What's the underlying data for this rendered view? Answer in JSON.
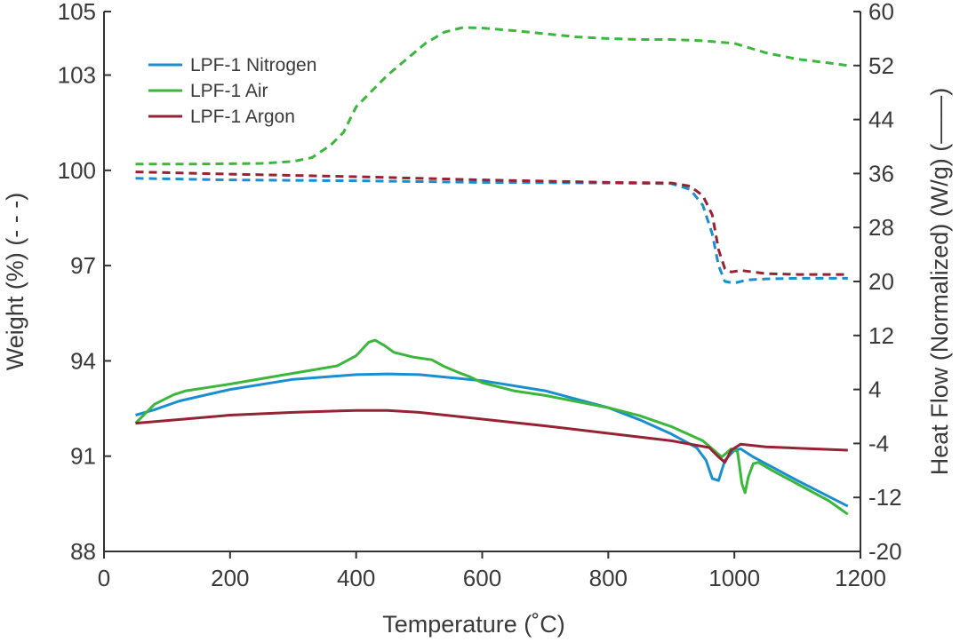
{
  "chart_data": {
    "type": "line",
    "title": "",
    "xlabel": "Temperature (˚C)",
    "ylabel_left": "Weight (%) (- - -)",
    "ylabel_right": "Heat Flow (Normalized) (W/g) (——)",
    "xlim": [
      0,
      1200
    ],
    "ylim_left": [
      88,
      105
    ],
    "ylim_right": [
      -20,
      60
    ],
    "x_ticks": [
      "0",
      "200",
      "400",
      "600",
      "800",
      "1000",
      "1200"
    ],
    "y_left_ticks": [
      "88",
      "91",
      "94",
      "97",
      "100",
      "103",
      "105"
    ],
    "y_right_ticks": [
      "-20",
      "-12",
      "-4",
      "4",
      "12",
      "20",
      "28",
      "36",
      "44",
      "52",
      "60"
    ],
    "legend_position": "top-left",
    "colors": {
      "nitrogen": "#1a8fd0",
      "air": "#3cb63c",
      "argon": "#962234"
    },
    "series": [
      {
        "name": "LPF-1 Nitrogen",
        "color": "#1a8fd0",
        "style": "dashed",
        "axis": "left",
        "legend": true,
        "points": [
          [
            50,
            99.75
          ],
          [
            200,
            99.7
          ],
          [
            400,
            99.67
          ],
          [
            600,
            99.62
          ],
          [
            800,
            99.6
          ],
          [
            900,
            99.58
          ],
          [
            930,
            99.4
          ],
          [
            950,
            98.9
          ],
          [
            965,
            98.0
          ],
          [
            975,
            97.0
          ],
          [
            985,
            96.5
          ],
          [
            1000,
            96.45
          ],
          [
            1020,
            96.55
          ],
          [
            1050,
            96.58
          ],
          [
            1100,
            96.6
          ],
          [
            1150,
            96.6
          ],
          [
            1180,
            96.6
          ]
        ]
      },
      {
        "name": "LPF-1 Air",
        "color": "#3cb63c",
        "style": "dashed",
        "axis": "left",
        "legend": true,
        "points": [
          [
            50,
            100.2
          ],
          [
            150,
            100.2
          ],
          [
            250,
            100.22
          ],
          [
            300,
            100.28
          ],
          [
            330,
            100.4
          ],
          [
            360,
            100.8
          ],
          [
            380,
            101.2
          ],
          [
            400,
            102.0
          ],
          [
            420,
            102.4
          ],
          [
            450,
            103.0
          ],
          [
            480,
            103.5
          ],
          [
            510,
            104.0
          ],
          [
            540,
            104.35
          ],
          [
            570,
            104.5
          ],
          [
            600,
            104.48
          ],
          [
            650,
            104.4
          ],
          [
            700,
            104.3
          ],
          [
            750,
            104.2
          ],
          [
            800,
            104.15
          ],
          [
            850,
            104.12
          ],
          [
            900,
            104.12
          ],
          [
            950,
            104.08
          ],
          [
            1000,
            104.0
          ],
          [
            1050,
            103.7
          ],
          [
            1100,
            103.5
          ],
          [
            1150,
            103.38
          ],
          [
            1180,
            103.3
          ]
        ]
      },
      {
        "name": "LPF-1 Argon",
        "color": "#962234",
        "style": "dashed",
        "axis": "left",
        "legend": true,
        "points": [
          [
            50,
            99.95
          ],
          [
            200,
            99.88
          ],
          [
            400,
            99.8
          ],
          [
            600,
            99.7
          ],
          [
            800,
            99.62
          ],
          [
            900,
            99.6
          ],
          [
            930,
            99.5
          ],
          [
            950,
            99.2
          ],
          [
            965,
            98.6
          ],
          [
            975,
            97.5
          ],
          [
            985,
            96.9
          ],
          [
            995,
            96.8
          ],
          [
            1010,
            96.85
          ],
          [
            1050,
            96.75
          ],
          [
            1100,
            96.72
          ],
          [
            1150,
            96.72
          ],
          [
            1180,
            96.72
          ]
        ]
      },
      {
        "name": "LPF-1 Nitrogen",
        "color": "#1a8fd0",
        "style": "solid",
        "axis": "right",
        "legend": false,
        "points": [
          [
            50,
            0.2
          ],
          [
            80,
            1.0
          ],
          [
            120,
            2.3
          ],
          [
            200,
            4.0
          ],
          [
            300,
            5.5
          ],
          [
            400,
            6.2
          ],
          [
            450,
            6.3
          ],
          [
            500,
            6.2
          ],
          [
            600,
            5.3
          ],
          [
            700,
            3.8
          ],
          [
            800,
            1.3
          ],
          [
            850,
            -0.5
          ],
          [
            900,
            -2.6
          ],
          [
            940,
            -4.6
          ],
          [
            955,
            -6.5
          ],
          [
            965,
            -9.2
          ],
          [
            975,
            -9.5
          ],
          [
            985,
            -6.5
          ],
          [
            1000,
            -5.0
          ],
          [
            1010,
            -4.8
          ],
          [
            1030,
            -6.0
          ],
          [
            1100,
            -9.5
          ],
          [
            1180,
            -13.3
          ]
        ]
      },
      {
        "name": "LPF-1 Air",
        "color": "#3cb63c",
        "style": "solid",
        "axis": "right",
        "legend": false,
        "points": [
          [
            50,
            -1.0
          ],
          [
            80,
            1.8
          ],
          [
            110,
            3.2
          ],
          [
            130,
            3.8
          ],
          [
            200,
            4.8
          ],
          [
            300,
            6.4
          ],
          [
            370,
            7.5
          ],
          [
            400,
            9.0
          ],
          [
            420,
            11.0
          ],
          [
            430,
            11.3
          ],
          [
            445,
            10.5
          ],
          [
            460,
            9.5
          ],
          [
            490,
            8.8
          ],
          [
            520,
            8.4
          ],
          [
            540,
            7.4
          ],
          [
            560,
            6.6
          ],
          [
            580,
            5.9
          ],
          [
            600,
            5.0
          ],
          [
            650,
            3.8
          ],
          [
            700,
            3.1
          ],
          [
            800,
            1.3
          ],
          [
            850,
            0.1
          ],
          [
            900,
            -1.5
          ],
          [
            950,
            -3.6
          ],
          [
            980,
            -6.0
          ],
          [
            995,
            -4.8
          ],
          [
            1005,
            -5.2
          ],
          [
            1012,
            -10.0
          ],
          [
            1017,
            -11.3
          ],
          [
            1022,
            -9.0
          ],
          [
            1030,
            -7.0
          ],
          [
            1038,
            -6.8
          ],
          [
            1060,
            -8.0
          ],
          [
            1100,
            -10.0
          ],
          [
            1150,
            -12.5
          ],
          [
            1180,
            -14.5
          ]
        ]
      },
      {
        "name": "LPF-1 Argon",
        "color": "#962234",
        "style": "solid",
        "axis": "right",
        "legend": false,
        "points": [
          [
            50,
            -1.0
          ],
          [
            100,
            -0.6
          ],
          [
            200,
            0.2
          ],
          [
            300,
            0.6
          ],
          [
            400,
            0.9
          ],
          [
            450,
            0.9
          ],
          [
            500,
            0.6
          ],
          [
            600,
            -0.4
          ],
          [
            700,
            -1.4
          ],
          [
            800,
            -2.5
          ],
          [
            900,
            -3.6
          ],
          [
            960,
            -4.6
          ],
          [
            975,
            -6.0
          ],
          [
            985,
            -6.8
          ],
          [
            995,
            -5.0
          ],
          [
            1010,
            -4.1
          ],
          [
            1050,
            -4.5
          ],
          [
            1100,
            -4.7
          ],
          [
            1180,
            -5.0
          ]
        ]
      }
    ]
  }
}
